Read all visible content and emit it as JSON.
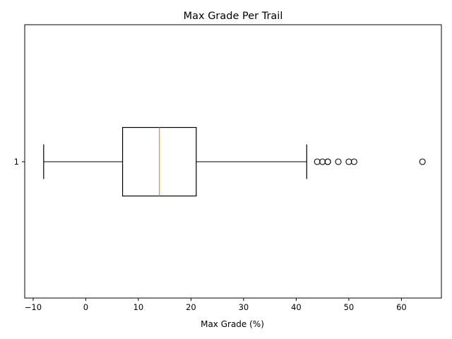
{
  "chart_data": {
    "type": "boxplot",
    "title": "Max Grade Per Trail",
    "xlabel": "Max Grade (%)",
    "ylabel": "",
    "orientation": "horizontal",
    "xlim": [
      -11.6,
      67.6
    ],
    "x_ticks": [
      -10,
      0,
      10,
      20,
      30,
      40,
      50,
      60
    ],
    "x_tick_labels": [
      "−10",
      "0",
      "10",
      "20",
      "30",
      "40",
      "50",
      "60"
    ],
    "y_ticks": [
      "1"
    ],
    "grid": false,
    "boxes": [
      {
        "label": "1",
        "whisker_low": -8,
        "q1": 7,
        "median": 14,
        "q3": 21,
        "whisker_high": 42,
        "outliers": [
          44,
          45,
          46,
          46,
          48,
          50,
          51,
          64
        ]
      }
    ],
    "colors": {
      "box": "#000000",
      "median": "#ff7f0e",
      "outlier": "#000000",
      "axes": "#000000"
    }
  }
}
